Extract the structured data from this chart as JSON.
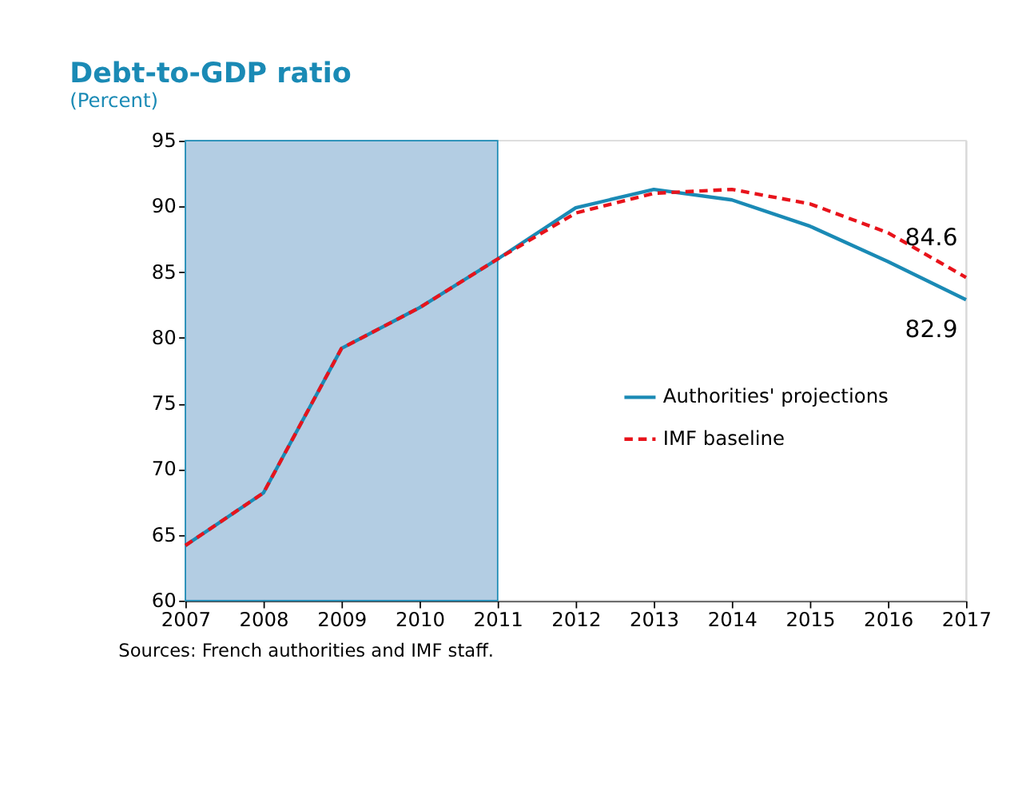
{
  "chart_data": {
    "type": "line",
    "title": "Debt-to-GDP ratio",
    "subtitle": "(Percent)",
    "x": [
      2007,
      2008,
      2009,
      2010,
      2011,
      2012,
      2013,
      2014,
      2015,
      2016,
      2017
    ],
    "series": [
      {
        "name": "Authorities' projections",
        "color": "#1a8ab5",
        "line_style": "solid",
        "values": [
          64.2,
          68.2,
          79.2,
          82.3,
          86.0,
          89.9,
          91.3,
          90.5,
          88.5,
          85.8,
          82.9
        ]
      },
      {
        "name": "IMF baseline",
        "color": "#e8131b",
        "line_style": "dashed",
        "values": [
          64.2,
          68.2,
          79.2,
          82.3,
          86.0,
          89.5,
          91.0,
          91.3,
          90.2,
          88.0,
          84.6
        ]
      }
    ],
    "xlim": [
      2007,
      2017
    ],
    "xticks": [
      2007,
      2008,
      2009,
      2010,
      2011,
      2012,
      2013,
      2014,
      2015,
      2016,
      2017
    ],
    "ylim": [
      60,
      95
    ],
    "yticks": [
      60,
      65,
      70,
      75,
      80,
      85,
      90,
      95
    ],
    "bands": [
      {
        "axis": "x",
        "from": 2007,
        "to": 2011,
        "color": "#b3cde3"
      }
    ],
    "annotations": [
      {
        "text": "84.6",
        "x": 2017,
        "y": 84.6
      },
      {
        "text": "82.9",
        "x": 2017,
        "y": 82.9
      },
      "Sources: French authorities and IMF staff."
    ],
    "grid": false,
    "legend": "right",
    "marker": "none"
  }
}
